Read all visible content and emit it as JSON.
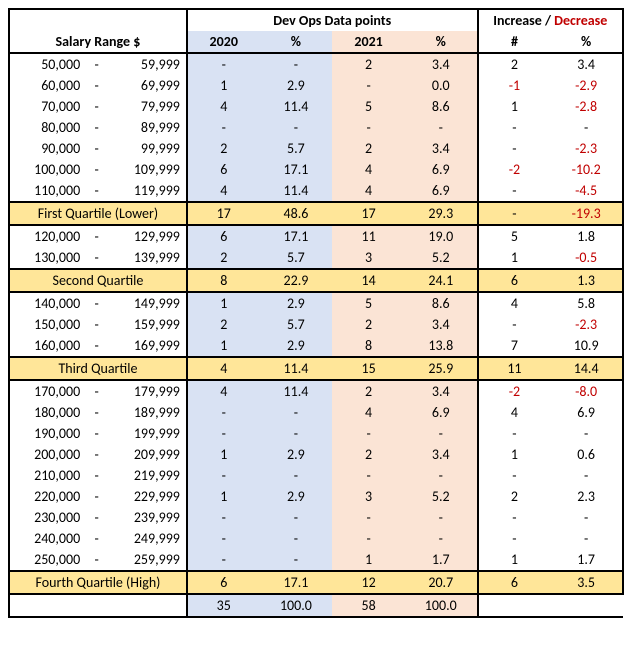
{
  "headers": {
    "devops": "Dev Ops Data points",
    "increase": "Increase",
    "slash": " / ",
    "decrease": "Decrease",
    "salary": "Salary Range $",
    "y2020": "2020",
    "pct": "%",
    "y2021": "2021",
    "hash": "#"
  },
  "colors": {
    "col2020_bg": "#d9e2f3",
    "col2021_bg": "#fbe4d5",
    "quartile_bg": "#ffe699",
    "negative": "#c00000"
  },
  "rows": [
    {
      "type": "data",
      "low": "50,000",
      "high": "59,999",
      "n20": "-",
      "p20": "-",
      "n21": "2",
      "p21": "3.4",
      "dn": "2",
      "dp": "3.4"
    },
    {
      "type": "data",
      "low": "60,000",
      "high": "69,999",
      "n20": "1",
      "p20": "2.9",
      "n21": "-",
      "p21": "0.0",
      "dn": "-1",
      "dp": "-2.9",
      "dn_neg": true,
      "dp_neg": true
    },
    {
      "type": "data",
      "low": "70,000",
      "high": "79,999",
      "n20": "4",
      "p20": "11.4",
      "n21": "5",
      "p21": "8.6",
      "dn": "1",
      "dp": "-2.8",
      "dp_neg": true
    },
    {
      "type": "data",
      "low": "80,000",
      "high": "89,999",
      "n20": "-",
      "p20": "-",
      "n21": "-",
      "p21": "-",
      "dn": "-",
      "dp": "-"
    },
    {
      "type": "data",
      "low": "90,000",
      "high": "99,999",
      "n20": "2",
      "p20": "5.7",
      "n21": "2",
      "p21": "3.4",
      "dn": "-",
      "dp": "-2.3",
      "dp_neg": true
    },
    {
      "type": "data",
      "low": "100,000",
      "high": "109,999",
      "n20": "6",
      "p20": "17.1",
      "n21": "4",
      "p21": "6.9",
      "dn": "-2",
      "dp": "-10.2",
      "dn_neg": true,
      "dp_neg": true
    },
    {
      "type": "data",
      "low": "110,000",
      "high": "119,999",
      "n20": "4",
      "p20": "11.4",
      "n21": "4",
      "p21": "6.9",
      "dn": "-",
      "dp": "-4.5",
      "dp_neg": true
    },
    {
      "type": "quartile",
      "label": "First Quartile (Lower)",
      "n20": "17",
      "p20": "48.6",
      "n21": "17",
      "p21": "29.3",
      "dn": "-",
      "dp": "-19.3",
      "dp_neg": true
    },
    {
      "type": "data",
      "low": "120,000",
      "high": "129,999",
      "n20": "6",
      "p20": "17.1",
      "n21": "11",
      "p21": "19.0",
      "dn": "5",
      "dp": "1.8"
    },
    {
      "type": "data",
      "low": "130,000",
      "high": "139,999",
      "n20": "2",
      "p20": "5.7",
      "n21": "3",
      "p21": "5.2",
      "dn": "1",
      "dp": "-0.5",
      "dp_neg": true
    },
    {
      "type": "quartile",
      "label": "Second Quartile",
      "n20": "8",
      "p20": "22.9",
      "n21": "14",
      "p21": "24.1",
      "dn": "6",
      "dp": "1.3"
    },
    {
      "type": "data",
      "low": "140,000",
      "high": "149,999",
      "n20": "1",
      "p20": "2.9",
      "n21": "5",
      "p21": "8.6",
      "dn": "4",
      "dp": "5.8"
    },
    {
      "type": "data",
      "low": "150,000",
      "high": "159,999",
      "n20": "2",
      "p20": "5.7",
      "n21": "2",
      "p21": "3.4",
      "dn": "-",
      "dp": "-2.3",
      "dp_neg": true
    },
    {
      "type": "data",
      "low": "160,000",
      "high": "169,999",
      "n20": "1",
      "p20": "2.9",
      "n21": "8",
      "p21": "13.8",
      "dn": "7",
      "dp": "10.9"
    },
    {
      "type": "quartile",
      "label": "Third Quartile",
      "n20": "4",
      "p20": "11.4",
      "n21": "15",
      "p21": "25.9",
      "dn": "11",
      "dp": "14.4"
    },
    {
      "type": "data",
      "low": "170,000",
      "high": "179,999",
      "n20": "4",
      "p20": "11.4",
      "n21": "2",
      "p21": "3.4",
      "dn": "-2",
      "dp": "-8.0",
      "dn_neg": true,
      "dp_neg": true
    },
    {
      "type": "data",
      "low": "180,000",
      "high": "189,999",
      "n20": "-",
      "p20": "-",
      "n21": "4",
      "p21": "6.9",
      "dn": "4",
      "dp": "6.9"
    },
    {
      "type": "data",
      "low": "190,000",
      "high": "199,999",
      "n20": "-",
      "p20": "-",
      "n21": "-",
      "p21": "-",
      "dn": "-",
      "dp": "-"
    },
    {
      "type": "data",
      "low": "200,000",
      "high": "209,999",
      "n20": "1",
      "p20": "2.9",
      "n21": "2",
      "p21": "3.4",
      "dn": "1",
      "dp": "0.6"
    },
    {
      "type": "data",
      "low": "210,000",
      "high": "219,999",
      "n20": "-",
      "p20": "-",
      "n21": "-",
      "p21": "-",
      "dn": "-",
      "dp": "-"
    },
    {
      "type": "data",
      "low": "220,000",
      "high": "229,999",
      "n20": "1",
      "p20": "2.9",
      "n21": "3",
      "p21": "5.2",
      "dn": "2",
      "dp": "2.3"
    },
    {
      "type": "data",
      "low": "230,000",
      "high": "239,999",
      "n20": "-",
      "p20": "-",
      "n21": "-",
      "p21": "-",
      "dn": "-",
      "dp": "-"
    },
    {
      "type": "data",
      "low": "240,000",
      "high": "249,999",
      "n20": "-",
      "p20": "-",
      "n21": "-",
      "p21": "-",
      "dn": "-",
      "dp": "-"
    },
    {
      "type": "data",
      "low": "250,000",
      "high": "259,999",
      "n20": "-",
      "p20": "-",
      "n21": "1",
      "p21": "1.7",
      "dn": "1",
      "dp": "1.7"
    },
    {
      "type": "quartile",
      "label": "Fourth Quartile (High)",
      "n20": "6",
      "p20": "17.1",
      "n21": "12",
      "p21": "20.7",
      "dn": "6",
      "dp": "3.5"
    }
  ],
  "totals": {
    "n20": "35",
    "p20": "100.0",
    "n21": "58",
    "p21": "100.0"
  }
}
